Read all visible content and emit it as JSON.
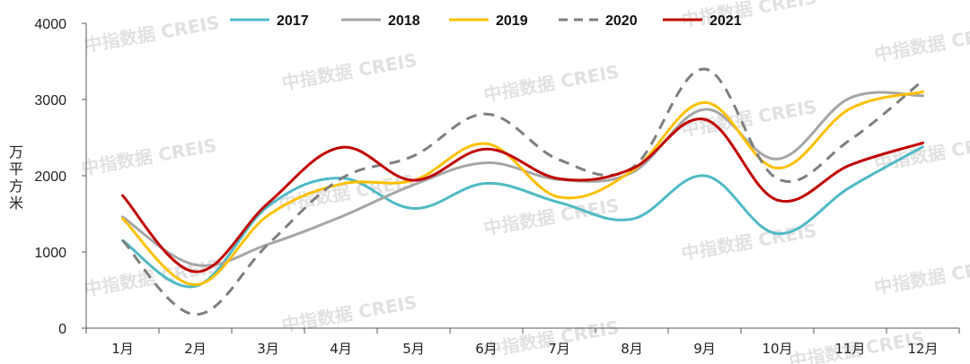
{
  "chart_data": {
    "type": "line",
    "title": "",
    "xlabel": "",
    "ylabel": "万平方米",
    "ylim": [
      0,
      4000
    ],
    "yticks": [
      0,
      1000,
      2000,
      3000,
      4000
    ],
    "categories": [
      "1月",
      "2月",
      "3月",
      "4月",
      "5月",
      "6月",
      "7月",
      "8月",
      "9月",
      "10月",
      "11月",
      "12月"
    ],
    "legend_position": "top",
    "series": [
      {
        "name": "2017",
        "color": "#4fbac6",
        "dash": "solid",
        "values": [
          1150,
          550,
          1600,
          1970,
          1570,
          1900,
          1650,
          1430,
          2000,
          1240,
          1850,
          2380
        ]
      },
      {
        "name": "2018",
        "color": "#a6a6a6",
        "dash": "solid",
        "values": [
          1460,
          830,
          1100,
          1460,
          1880,
          2170,
          1950,
          2040,
          2870,
          2220,
          3020,
          3050
        ]
      },
      {
        "name": "2019",
        "color": "#ffc000",
        "dash": "solid",
        "values": [
          1440,
          570,
          1480,
          1890,
          1940,
          2420,
          1720,
          2060,
          2960,
          2100,
          2880,
          3100
        ]
      },
      {
        "name": "2020",
        "color": "#7f7f7f",
        "dash": "dashed",
        "values": [
          1150,
          180,
          1100,
          1960,
          2260,
          2810,
          2210,
          2100,
          3400,
          1960,
          2470,
          3250
        ]
      },
      {
        "name": "2021",
        "color": "#c00000",
        "dash": "solid",
        "values": [
          1740,
          740,
          1640,
          2370,
          1940,
          2350,
          1960,
          2090,
          2740,
          1680,
          2140,
          2430
        ]
      }
    ]
  },
  "watermark": {
    "text": "中指数据 CREIS",
    "color": "#d8d8d8"
  }
}
